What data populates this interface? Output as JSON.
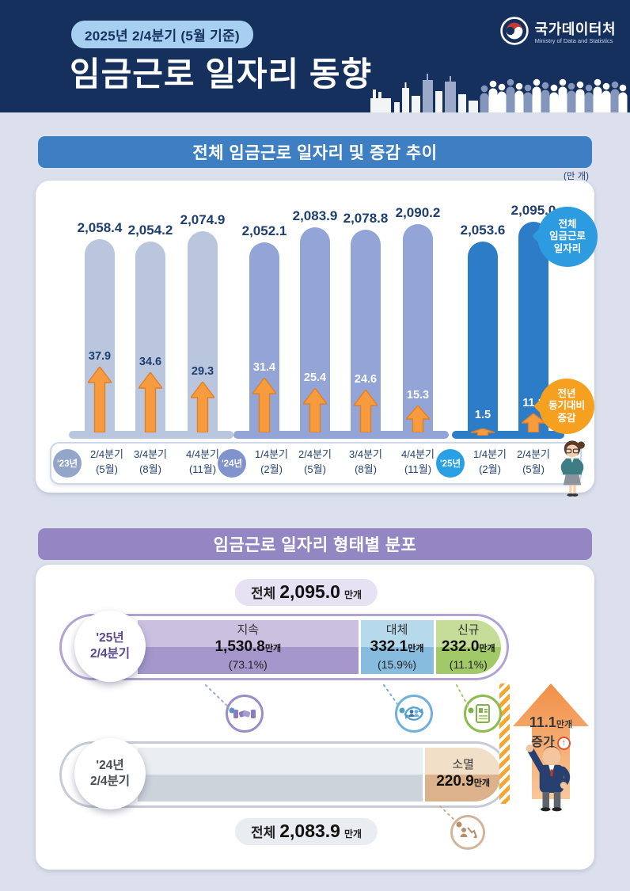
{
  "header": {
    "badge": "2025년 2/4분기 (5월 기준)",
    "title": "임금근로 일자리 동향",
    "logo_title": "국가데이터처",
    "logo_subtitle": "Ministry of Data and Statistics"
  },
  "section1": {
    "title": "전체 임금근로 일자리 및 증감 추이",
    "unit_label": "(만 개)",
    "bubble_total_lines": [
      "전체",
      "임금근로",
      "일자리"
    ],
    "bubble_change_lines": [
      "전년",
      "동기대비",
      "증감"
    ]
  },
  "chart_data": [
    {
      "type": "bar",
      "title": "전체 임금근로 일자리 및 증감 추이",
      "unit": "만 개",
      "ylim": [
        2040,
        2100
      ],
      "categories": [
        "'23년 2/4분기(5월)",
        "'23년 3/4분기(8월)",
        "'23년 4/4분기(11월)",
        "'24년 1/4분기(2월)",
        "'24년 2/4분기(5월)",
        "'24년 3/4분기(8월)",
        "'24년 4/4분기(11월)",
        "'25년 1/4분기(2월)",
        "'25년 2/4분기(5월)"
      ],
      "category_lines": [
        [
          "2/4분기",
          "(5월)"
        ],
        [
          "3/4분기",
          "(8월)"
        ],
        [
          "4/4분기",
          "(11월)"
        ],
        [
          "1/4분기",
          "(2월)"
        ],
        [
          "2/4분기",
          "(5월)"
        ],
        [
          "3/4분기",
          "(8월)"
        ],
        [
          "4/4분기",
          "(11월)"
        ],
        [
          "1/4분기",
          "(2월)"
        ],
        [
          "2/4분기",
          "(5월)"
        ]
      ],
      "group_labels": [
        "'23년",
        "'24년",
        "'25년"
      ],
      "group_of": [
        0,
        0,
        0,
        1,
        1,
        1,
        1,
        2,
        2
      ],
      "group_bar_colors": [
        "#b9c6de",
        "#93a4d6",
        "#2d7cc7"
      ],
      "group_circle_colors": [
        "#93a5c9",
        "#8093cd",
        "#29a0e3"
      ],
      "arrow_color": "#f79b3f",
      "legend_position": "right",
      "series": [
        {
          "name": "전체 임금근로 일자리",
          "values": [
            2058.4,
            2054.2,
            2074.9,
            2052.1,
            2083.9,
            2078.8,
            2090.2,
            2053.6,
            2095.0
          ]
        },
        {
          "name": "전년 동기대비 증감",
          "values": [
            37.9,
            34.6,
            29.3,
            31.4,
            25.4,
            24.6,
            15.3,
            1.5,
            11.1
          ]
        }
      ]
    },
    {
      "type": "bar",
      "title": "임금근로 일자리 형태별 분포",
      "unit": "만개",
      "rows": [
        {
          "period": "'25년 2/4분기",
          "total": 2095.0,
          "segments": [
            {
              "name": "지속",
              "value": 1530.8,
              "pct": 73.1,
              "color": "#a596cc"
            },
            {
              "name": "대체",
              "value": 332.1,
              "pct": 15.9,
              "color": "#88bcdf"
            },
            {
              "name": "신규",
              "value": 232.0,
              "pct": 11.1,
              "color": "#a2c967"
            }
          ]
        },
        {
          "period": "'24년 2/4분기",
          "total": 2083.9,
          "segments": [
            {
              "name": "소멸",
              "value": 220.9,
              "color": "#dcb28c"
            }
          ]
        }
      ],
      "annotation": "11.1만개 증가"
    }
  ],
  "section2": {
    "title": "임금근로 일자리 형태별 분포",
    "total_top": {
      "prefix": "전체",
      "value": "2,095.0",
      "suffix": "만개"
    },
    "total_bottom": {
      "prefix": "전체",
      "value": "2,083.9",
      "suffix": "만개"
    },
    "row25": {
      "year": "'25년",
      "quarter": "2/4분기",
      "seg1": {
        "name": "지속",
        "value": "1,530.8",
        "unit": "만개",
        "pct": "(73.1%)"
      },
      "seg2": {
        "name": "대체",
        "value": "332.1",
        "unit": "만개",
        "pct": "(15.9%)"
      },
      "seg3": {
        "name": "신규",
        "value": "232.0",
        "unit": "만개",
        "pct": "(11.1%)"
      }
    },
    "row24": {
      "year": "'24년",
      "quarter": "2/4분기",
      "seg": {
        "name": "소멸",
        "value": "220.9",
        "unit": "만개"
      }
    },
    "increase": {
      "value": "11.1",
      "unit": "만개",
      "label": "증가",
      "icon": "↑"
    }
  }
}
